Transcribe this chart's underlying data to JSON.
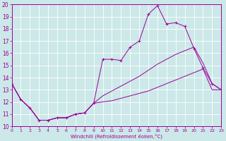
{
  "xlabel": "Windchill (Refroidissement éolien,°C)",
  "x_values": [
    0,
    1,
    2,
    3,
    4,
    5,
    6,
    7,
    8,
    9,
    10,
    11,
    12,
    13,
    14,
    15,
    16,
    17,
    18,
    19,
    20,
    21,
    22,
    23
  ],
  "top_y": [
    13.5,
    12.2,
    11.5,
    10.5,
    10.5,
    10.7,
    10.7,
    11.0,
    11.1,
    11.9,
    15.5,
    15.5,
    15.4,
    16.5,
    17.0,
    19.2,
    19.9,
    18.4,
    18.5,
    18.2,
    16.4,
    14.8,
    13.5,
    13.0
  ],
  "mid_y": [
    13.5,
    12.2,
    11.5,
    10.5,
    10.5,
    10.7,
    10.7,
    11.0,
    11.1,
    11.9,
    12.5,
    12.9,
    13.3,
    13.7,
    14.1,
    14.6,
    15.1,
    15.5,
    15.9,
    16.2,
    16.5,
    15.2,
    13.5,
    13.0
  ],
  "bot_y": [
    13.5,
    12.2,
    11.5,
    10.5,
    10.5,
    10.7,
    10.7,
    11.0,
    11.1,
    11.9,
    12.0,
    12.1,
    12.3,
    12.5,
    12.7,
    12.9,
    13.2,
    13.5,
    13.8,
    14.1,
    14.4,
    14.7,
    13.0,
    13.0
  ],
  "color": "#990099",
  "bg_color": "#cce8e8",
  "grid_color": "#ffffff",
  "ylim": [
    10,
    20
  ],
  "xlim": [
    0,
    23
  ],
  "yticks": [
    10,
    11,
    12,
    13,
    14,
    15,
    16,
    17,
    18,
    19,
    20
  ],
  "xticks": [
    0,
    1,
    2,
    3,
    4,
    5,
    6,
    7,
    8,
    9,
    10,
    11,
    12,
    13,
    14,
    15,
    16,
    17,
    18,
    19,
    20,
    21,
    22,
    23
  ]
}
